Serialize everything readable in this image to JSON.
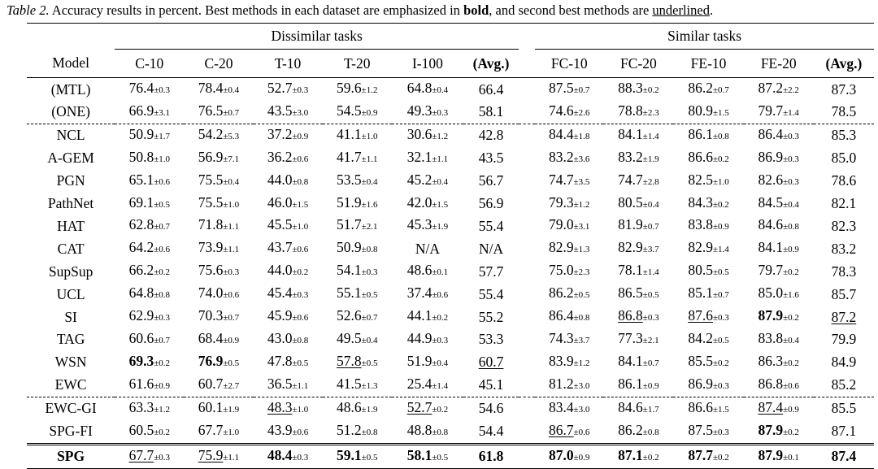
{
  "caption": {
    "label": "Table 2.",
    "text_before_bold": " Accuracy results in percent. Best methods in each dataset are emphasized in ",
    "bold_word": "bold",
    "text_between": ", and second best methods are ",
    "underlined_word": "underlined",
    "text_after": "."
  },
  "groups": {
    "dissimilar": "Dissimilar tasks",
    "similar": "Similar tasks"
  },
  "columns": [
    "Model",
    "C-10",
    "C-20",
    "T-10",
    "T-20",
    "I-100",
    "(Avg.)",
    "FC-10",
    "FC-20",
    "FE-10",
    "FE-20",
    "(Avg.)"
  ],
  "rows": [
    {
      "model": "(MTL)",
      "sec": "ref",
      "cells": [
        [
          "76.4",
          "±0.3"
        ],
        [
          "78.4",
          "±0.4"
        ],
        [
          "52.7",
          "±0.3"
        ],
        [
          "59.6",
          "±1.2"
        ],
        [
          "64.8",
          "±0.4"
        ],
        [
          "66.4",
          ""
        ],
        [
          "87.5",
          "±0.7"
        ],
        [
          "88.3",
          "±0.2"
        ],
        [
          "86.2",
          "±0.7"
        ],
        [
          "87.2",
          "±2.2"
        ],
        [
          "87.3",
          ""
        ]
      ]
    },
    {
      "model": "(ONE)",
      "sec": "ref",
      "cells": [
        [
          "66.9",
          "±3.1"
        ],
        [
          "76.5",
          "±0.7"
        ],
        [
          "43.5",
          "±3.0"
        ],
        [
          "54.5",
          "±0.9"
        ],
        [
          "49.3",
          "±0.3"
        ],
        [
          "58.1",
          ""
        ],
        [
          "74.6",
          "±2.6"
        ],
        [
          "78.8",
          "±2.3"
        ],
        [
          "80.9",
          "±1.5"
        ],
        [
          "79.7",
          "±1.4"
        ],
        [
          "78.5",
          ""
        ]
      ]
    },
    {
      "model": "NCL",
      "sec": "main",
      "cells": [
        [
          "50.9",
          "±1.7"
        ],
        [
          "54.2",
          "±5.3"
        ],
        [
          "37.2",
          "±0.9"
        ],
        [
          "41.1",
          "±1.0"
        ],
        [
          "30.6",
          "±1.2"
        ],
        [
          "42.8",
          ""
        ],
        [
          "84.4",
          "±1.8"
        ],
        [
          "84.1",
          "±1.4"
        ],
        [
          "86.1",
          "±0.8"
        ],
        [
          "86.4",
          "±0.3"
        ],
        [
          "85.3",
          ""
        ]
      ]
    },
    {
      "model": "A-GEM",
      "sec": "main",
      "cells": [
        [
          "50.8",
          "±1.0"
        ],
        [
          "56.9",
          "±7.1"
        ],
        [
          "36.2",
          "±0.6"
        ],
        [
          "41.7",
          "±1.1"
        ],
        [
          "32.1",
          "±1.1"
        ],
        [
          "43.5",
          ""
        ],
        [
          "83.2",
          "±3.6"
        ],
        [
          "83.2",
          "±1.9"
        ],
        [
          "86.6",
          "±0.2"
        ],
        [
          "86.9",
          "±0.3"
        ],
        [
          "85.0",
          ""
        ]
      ]
    },
    {
      "model": "PGN",
      "sec": "main",
      "cells": [
        [
          "65.1",
          "±0.6"
        ],
        [
          "75.5",
          "±0.4"
        ],
        [
          "44.0",
          "±0.8"
        ],
        [
          "53.5",
          "±0.4"
        ],
        [
          "45.2",
          "±0.4"
        ],
        [
          "56.7",
          ""
        ],
        [
          "74.7",
          "±3.5"
        ],
        [
          "74.7",
          "±2.8"
        ],
        [
          "82.5",
          "±1.0"
        ],
        [
          "82.6",
          "±0.3"
        ],
        [
          "78.6",
          ""
        ]
      ]
    },
    {
      "model": "PathNet",
      "sec": "main",
      "cells": [
        [
          "69.1",
          "±0.5"
        ],
        [
          "75.5",
          "±1.0"
        ],
        [
          "46.0",
          "±1.5"
        ],
        [
          "51.9",
          "±1.6"
        ],
        [
          "42.0",
          "±1.5"
        ],
        [
          "56.9",
          ""
        ],
        [
          "79.3",
          "±1.2"
        ],
        [
          "80.5",
          "±0.4"
        ],
        [
          "84.3",
          "±0.2"
        ],
        [
          "84.5",
          "±0.4"
        ],
        [
          "82.1",
          ""
        ]
      ]
    },
    {
      "model": "HAT",
      "sec": "main",
      "cells": [
        [
          "62.8",
          "±0.7"
        ],
        [
          "71.8",
          "±1.1"
        ],
        [
          "45.5",
          "±1.0"
        ],
        [
          "51.7",
          "±2.1"
        ],
        [
          "45.3",
          "±1.9"
        ],
        [
          "55.4",
          ""
        ],
        [
          "79.0",
          "±3.1"
        ],
        [
          "81.9",
          "±0.7"
        ],
        [
          "83.8",
          "±0.9"
        ],
        [
          "84.6",
          "±0.8"
        ],
        [
          "82.3",
          ""
        ]
      ]
    },
    {
      "model": "CAT",
      "sec": "main",
      "cells": [
        [
          "64.2",
          "±0.6"
        ],
        [
          "73.9",
          "±1.1"
        ],
        [
          "43.7",
          "±0.6"
        ],
        [
          "50.9",
          "±0.8"
        ],
        [
          "N/A",
          ""
        ],
        [
          "N/A",
          ""
        ],
        [
          "82.9",
          "±1.3"
        ],
        [
          "82.9",
          "±3.7"
        ],
        [
          "82.9",
          "±1.4"
        ],
        [
          "84.1",
          "±0.9"
        ],
        [
          "83.2",
          ""
        ]
      ]
    },
    {
      "model": "SupSup",
      "sec": "main",
      "cells": [
        [
          "66.2",
          "±0.2"
        ],
        [
          "75.6",
          "±0.3"
        ],
        [
          "44.0",
          "±0.2"
        ],
        [
          "54.1",
          "±0.3"
        ],
        [
          "48.6",
          "±0.1"
        ],
        [
          "57.7",
          ""
        ],
        [
          "75.0",
          "±2.3"
        ],
        [
          "78.1",
          "±1.4"
        ],
        [
          "80.5",
          "±0.5"
        ],
        [
          "79.7",
          "±0.2"
        ],
        [
          "78.3",
          ""
        ]
      ]
    },
    {
      "model": "UCL",
      "sec": "main",
      "cells": [
        [
          "64.8",
          "±0.8"
        ],
        [
          "74.0",
          "±0.6"
        ],
        [
          "45.4",
          "±0.3"
        ],
        [
          "55.1",
          "±0.5"
        ],
        [
          "37.4",
          "±0.6"
        ],
        [
          "55.4",
          ""
        ],
        [
          "86.2",
          "±0.5"
        ],
        [
          "86.5",
          "±0.5"
        ],
        [
          "85.1",
          "±0.7"
        ],
        [
          "85.0",
          "±1.6"
        ],
        [
          "85.7",
          ""
        ]
      ]
    },
    {
      "model": "SI",
      "sec": "main",
      "cells": [
        [
          "62.9",
          "±0.3"
        ],
        [
          "70.3",
          "±0.7"
        ],
        [
          "45.9",
          "±0.6"
        ],
        [
          "52.6",
          "±0.7"
        ],
        [
          "44.1",
          "±0.2"
        ],
        [
          "55.2",
          ""
        ],
        [
          "86.4",
          "±0.8"
        ],
        [
          "86.8",
          "±0.3",
          "u"
        ],
        [
          "87.6",
          "±0.3",
          "u"
        ],
        [
          "87.9",
          "±0.2",
          "b"
        ],
        [
          "87.2",
          "",
          "u"
        ]
      ]
    },
    {
      "model": "TAG",
      "sec": "main",
      "cells": [
        [
          "60.6",
          "±0.7"
        ],
        [
          "68.4",
          "±0.9"
        ],
        [
          "43.0",
          "±0.8"
        ],
        [
          "49.5",
          "±0.4"
        ],
        [
          "44.9",
          "±0.3"
        ],
        [
          "53.3",
          ""
        ],
        [
          "74.3",
          "±3.7"
        ],
        [
          "77.3",
          "±2.1"
        ],
        [
          "84.2",
          "±0.5"
        ],
        [
          "83.8",
          "±0.4"
        ],
        [
          "79.9",
          ""
        ]
      ]
    },
    {
      "model": "WSN",
      "sec": "main",
      "cells": [
        [
          "69.3",
          "±0.2",
          "b"
        ],
        [
          "76.9",
          "±0.5",
          "b"
        ],
        [
          "47.8",
          "±0.5"
        ],
        [
          "57.8",
          "±0.5",
          "u"
        ],
        [
          "51.9",
          "±0.4"
        ],
        [
          "60.7",
          "",
          "u"
        ],
        [
          "83.9",
          "±1.2"
        ],
        [
          "84.1",
          "±0.7"
        ],
        [
          "85.5",
          "±0.2"
        ],
        [
          "86.3",
          "±0.2"
        ],
        [
          "84.9",
          ""
        ]
      ]
    },
    {
      "model": "EWC",
      "sec": "main",
      "cells": [
        [
          "61.6",
          "±0.9"
        ],
        [
          "60.7",
          "±2.7"
        ],
        [
          "36.5",
          "±1.1"
        ],
        [
          "41.5",
          "±1.3"
        ],
        [
          "25.4",
          "±1.4"
        ],
        [
          "45.1",
          ""
        ],
        [
          "81.2",
          "±3.0"
        ],
        [
          "86.1",
          "±0.9"
        ],
        [
          "86.9",
          "±0.3"
        ],
        [
          "86.8",
          "±0.6"
        ],
        [
          "85.2",
          ""
        ]
      ]
    },
    {
      "model": "EWC-GI",
      "sec": "abl",
      "cells": [
        [
          "63.3",
          "±1.2"
        ],
        [
          "60.1",
          "±1.9"
        ],
        [
          "48.3",
          "±1.0",
          "u"
        ],
        [
          "48.6",
          "±1.9"
        ],
        [
          "52.7",
          "±0.2",
          "u"
        ],
        [
          "54.6",
          ""
        ],
        [
          "83.4",
          "±3.0"
        ],
        [
          "84.6",
          "±1.7"
        ],
        [
          "86.6",
          "±1.5"
        ],
        [
          "87.4",
          "±0.9",
          "u"
        ],
        [
          "85.5",
          ""
        ]
      ]
    },
    {
      "model": "SPG-FI",
      "sec": "abl",
      "cells": [
        [
          "60.5",
          "±0.2"
        ],
        [
          "67.7",
          "±1.0"
        ],
        [
          "43.9",
          "±0.6"
        ],
        [
          "51.2",
          "±0.8"
        ],
        [
          "48.8",
          "±0.8"
        ],
        [
          "54.4",
          ""
        ],
        [
          "86.7",
          "±0.6",
          "u"
        ],
        [
          "86.2",
          "±0.8"
        ],
        [
          "87.5",
          "±0.3"
        ],
        [
          "87.9",
          "±0.2",
          "b"
        ],
        [
          "87.1",
          ""
        ]
      ]
    },
    {
      "model": "SPG",
      "sec": "ours",
      "bold_model": true,
      "cells": [
        [
          "67.7",
          "±0.3",
          "u"
        ],
        [
          "75.9",
          "±1.1",
          "u"
        ],
        [
          "48.4",
          "±0.3",
          "b"
        ],
        [
          "59.1",
          "±0.5",
          "b"
        ],
        [
          "58.1",
          "±0.5",
          "b"
        ],
        [
          "61.8",
          "",
          "b"
        ],
        [
          "87.0",
          "±0.9",
          "b"
        ],
        [
          "87.1",
          "±0.2",
          "b"
        ],
        [
          "87.7",
          "±0.2",
          "b"
        ],
        [
          "87.9",
          "±0.1",
          "b"
        ],
        [
          "87.4",
          "",
          "b"
        ]
      ]
    }
  ]
}
